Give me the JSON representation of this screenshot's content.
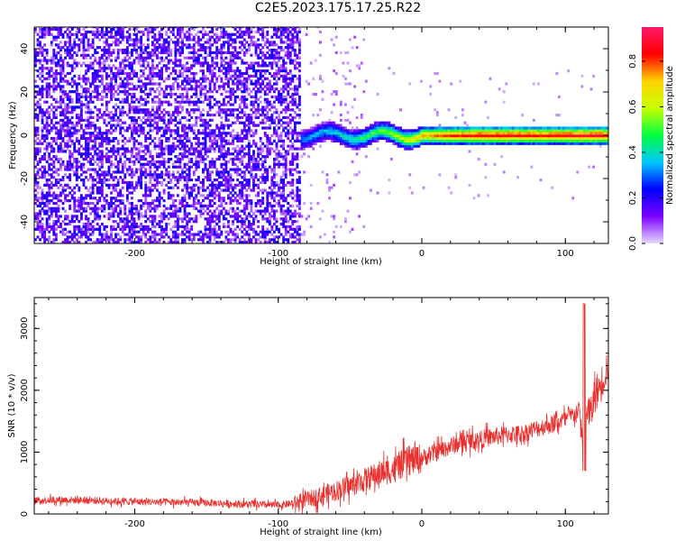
{
  "figure": {
    "title": "C2E5.2023.175.17.25.R22"
  },
  "chart_data": [
    {
      "type": "heatmap",
      "title": "C2E5.2023.175.17.25.R22",
      "xlabel": "Height of straight line (km)",
      "ylabel": "Frequency (Hz)",
      "xlim": [
        -270,
        130
      ],
      "ylim": [
        -50,
        50
      ],
      "xticks": [
        -200,
        -100,
        0,
        100
      ],
      "yticks": [
        -40,
        -20,
        0,
        20,
        40
      ],
      "colorbar": {
        "label": "Normalized spectral amplitude",
        "range": [
          0,
          0.95
        ],
        "ticks": [
          0.0,
          0.2,
          0.4,
          0.6,
          0.8
        ],
        "colormap": [
          "#e8d8ff",
          "#7b00ff",
          "#0000ff",
          "#00c8ff",
          "#00ff40",
          "#c8ff00",
          "#ffd200",
          "#ff0000",
          "#ff1a6a"
        ]
      },
      "regions": [
        {
          "x_range": [
            -270,
            -85
          ],
          "frequency_range": [
            -50,
            50
          ],
          "amplitude": "broadband noise, ~0.05–0.25"
        },
        {
          "x_range": [
            -85,
            -40
          ],
          "frequency_range": [
            -50,
            50
          ],
          "amplitude": "sparse noise, ~0.02"
        },
        {
          "x_range": [
            -85,
            130
          ],
          "frequency_center": 0,
          "frequency_halfwidth": 4,
          "amplitude": "narrowband line, 0.3 rising to 0.9"
        }
      ],
      "ridge": {
        "x": [
          -85,
          -60,
          -40,
          -20,
          0,
          20,
          40,
          60,
          80,
          100,
          120,
          130
        ],
        "amplitude": [
          0.35,
          0.4,
          0.5,
          0.6,
          0.75,
          0.85,
          0.9,
          0.9,
          0.88,
          0.9,
          0.92,
          0.9
        ]
      }
    },
    {
      "type": "line",
      "xlabel": "Height of straight line (km)",
      "ylabel": "SNR (10 * v/v)",
      "xlim": [
        -270,
        130
      ],
      "ylim": [
        0,
        3500
      ],
      "xticks": [
        -200,
        -100,
        0,
        100
      ],
      "yticks": [
        0,
        1000,
        2000,
        3000
      ],
      "color": "#e8312f",
      "series": [
        {
          "x": [
            -270,
            -250,
            -200,
            -150,
            -100,
            -90,
            -80,
            -70,
            -60,
            -50,
            -40,
            -30,
            -20,
            -10,
            0,
            10,
            20,
            30,
            40,
            50,
            60,
            70,
            80,
            90,
            100,
            105,
            110,
            113,
            115,
            118,
            120,
            125,
            130
          ],
          "y": [
            220,
            230,
            200,
            180,
            140,
            170,
            230,
            300,
            380,
            450,
            550,
            650,
            720,
            850,
            900,
            1000,
            1100,
            1170,
            1200,
            1250,
            1280,
            1300,
            1380,
            1450,
            1530,
            1600,
            1680,
            900,
            1750,
            1600,
            1900,
            2100,
            2450
          ]
        }
      ]
    }
  ]
}
